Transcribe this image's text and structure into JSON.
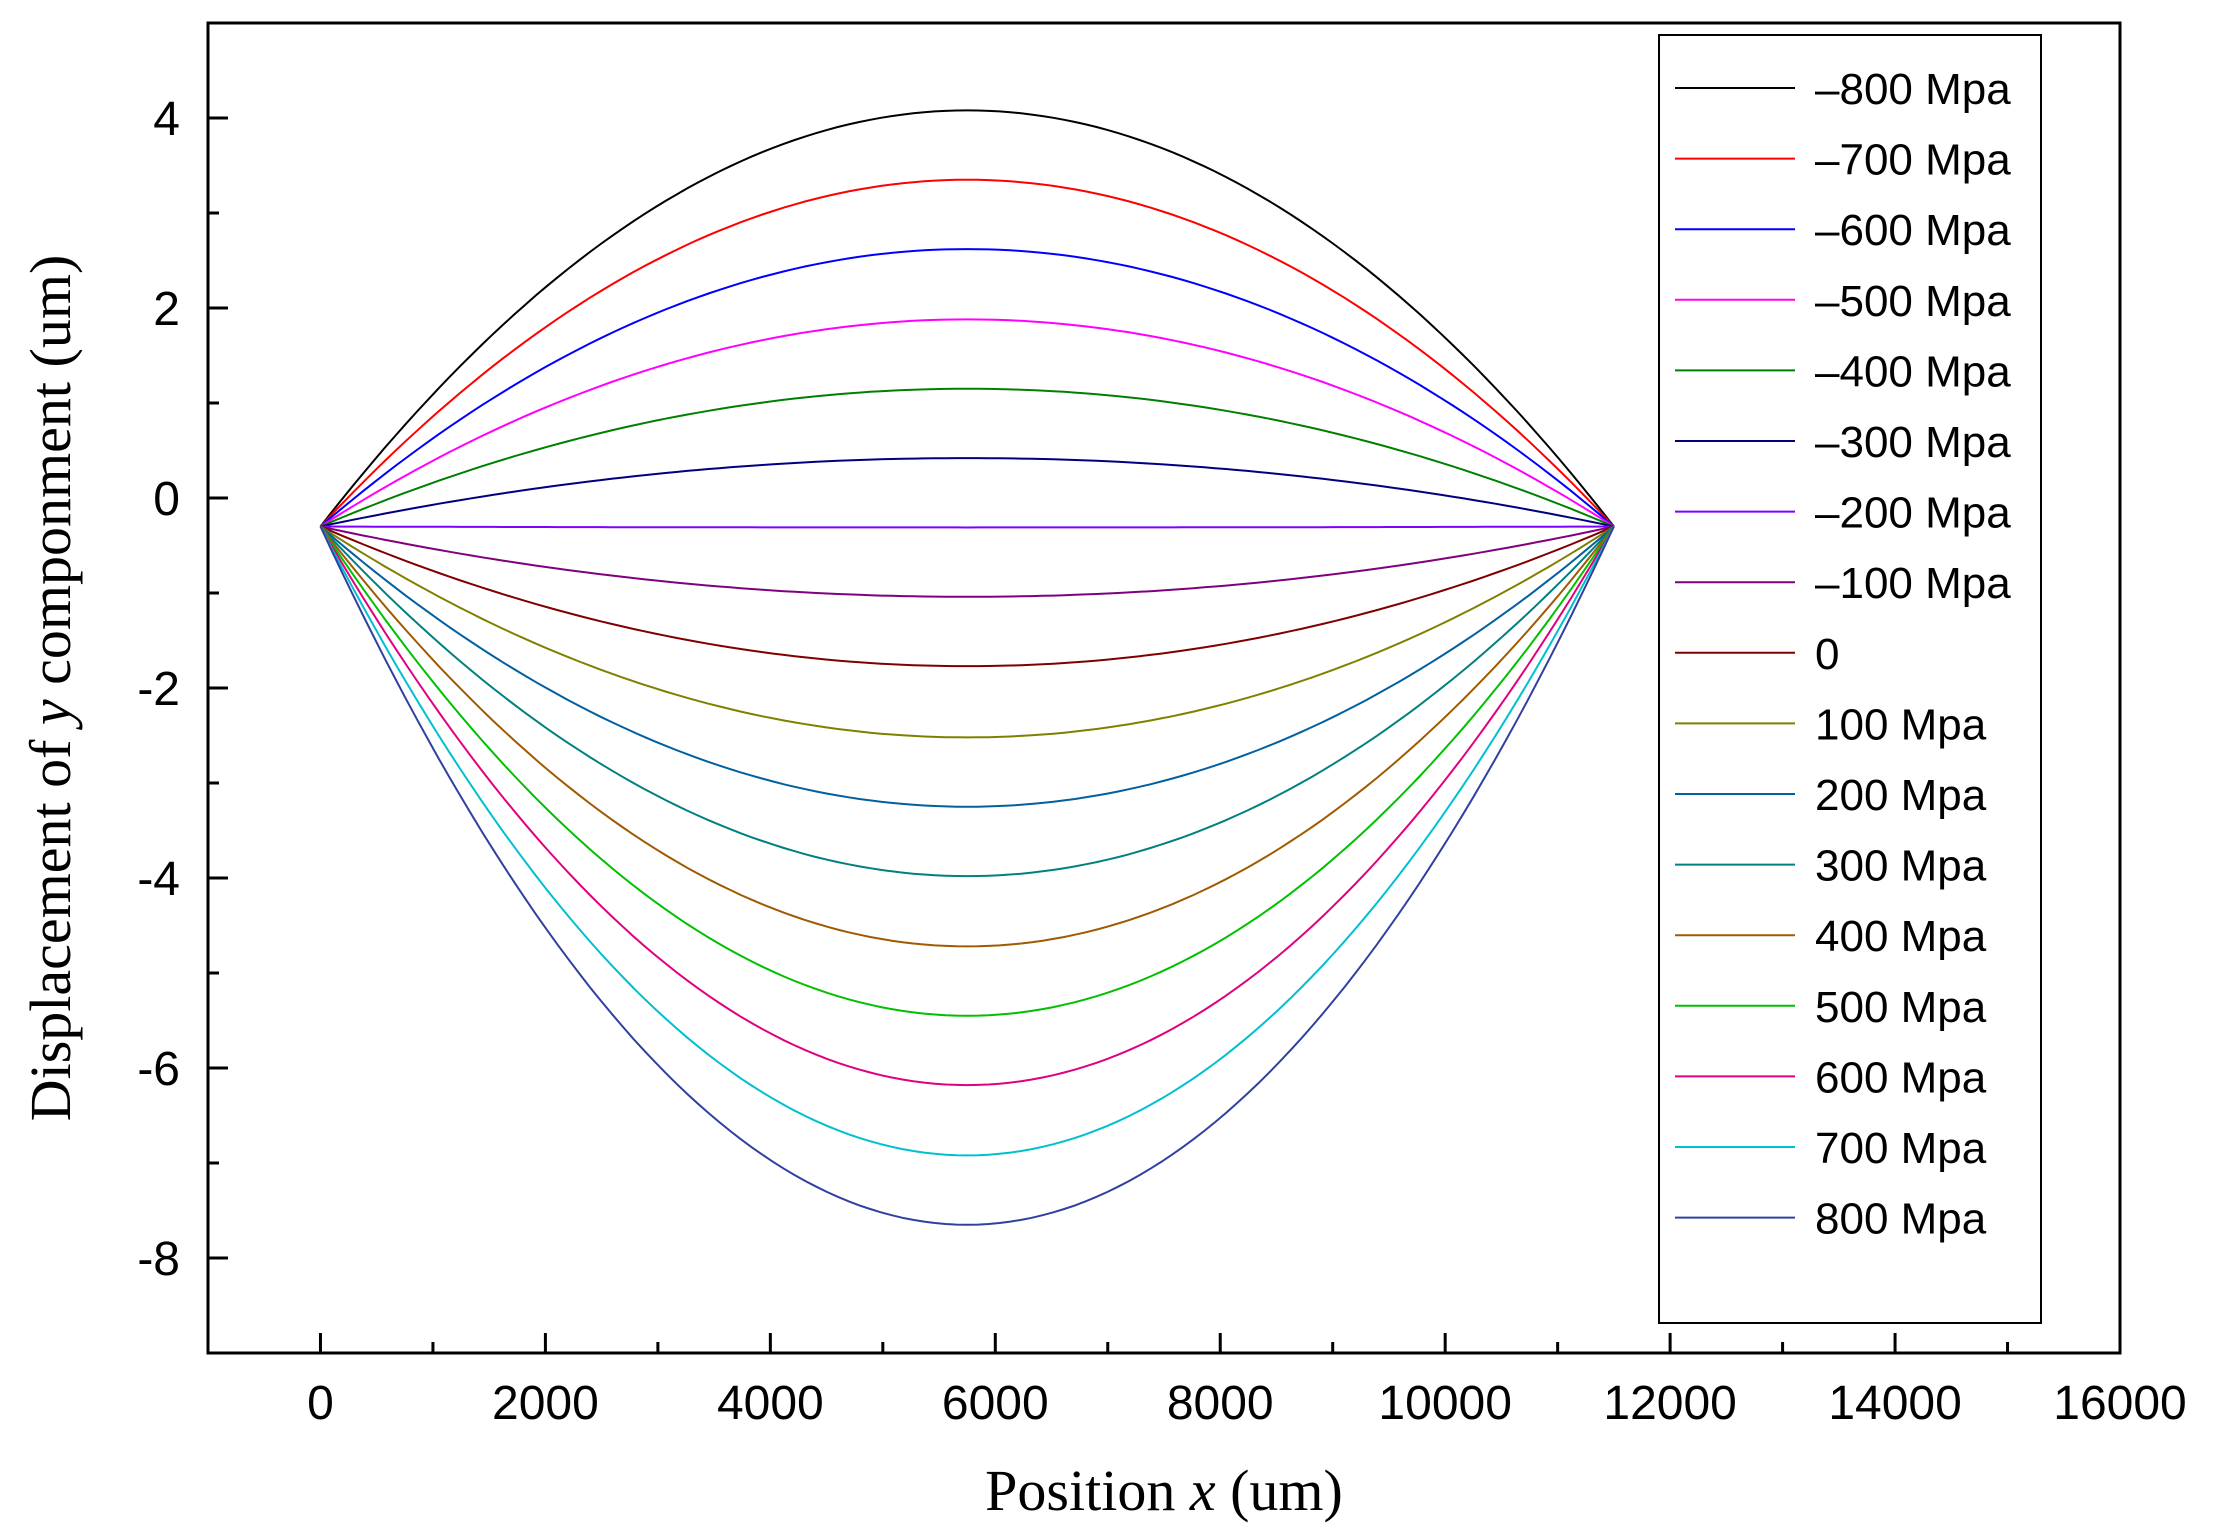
{
  "chart_data": {
    "type": "line",
    "xlabel_parts": [
      "Position ",
      "x",
      " (um)"
    ],
    "ylabel_parts": [
      "Displacement of ",
      "y",
      " componment (um)"
    ],
    "xlim": [
      -1000,
      16000
    ],
    "ylim": [
      -9,
      5
    ],
    "x_ticks": [
      0,
      2000,
      4000,
      6000,
      8000,
      10000,
      12000,
      14000,
      16000
    ],
    "x_tick_labels": [
      "0",
      "2000",
      "4000",
      "6000",
      "8000",
      "10000",
      "12000",
      "14000",
      "16000"
    ],
    "y_ticks": [
      4,
      2,
      0,
      -2,
      -4,
      -6,
      -8
    ],
    "y_tick_labels": [
      "4",
      "2",
      "0",
      "-2",
      "-4",
      "-6",
      "-8"
    ],
    "x_minor_step": 1000,
    "y_minor_step": 1,
    "grid": false,
    "legend_position": "top-right",
    "curve_shape": "parabola",
    "x_start": 0,
    "x_end": 11500,
    "x_peak": 5750,
    "endpoint_y": -0.3,
    "series": [
      {
        "name": "–800 Mpa",
        "color": "#000000",
        "peak": 4.08
      },
      {
        "name": "–700 Mpa",
        "color": "#ff0000",
        "peak": 3.35
      },
      {
        "name": "–600 Mpa",
        "color": "#0000ff",
        "peak": 2.62
      },
      {
        "name": "–500 Mpa",
        "color": "#ff00ff",
        "peak": 1.88
      },
      {
        "name": "–400 Mpa",
        "color": "#008000",
        "peak": 1.15
      },
      {
        "name": "–300 Mpa",
        "color": "#000080",
        "peak": 0.42
      },
      {
        "name": "–200 Mpa",
        "color": "#8000ff",
        "peak": -0.31
      },
      {
        "name": "–100 Mpa",
        "color": "#800080",
        "peak": -1.04
      },
      {
        "name": "0",
        "color": "#800000",
        "peak": -1.77
      },
      {
        "name": "100 Mpa",
        "color": "#808000",
        "peak": -2.52
      },
      {
        "name": "200 Mpa",
        "color": "#0060a0",
        "peak": -3.25
      },
      {
        "name": "300 Mpa",
        "color": "#008080",
        "peak": -3.98
      },
      {
        "name": "400 Mpa",
        "color": "#a05a00",
        "peak": -4.72
      },
      {
        "name": "500 Mpa",
        "color": "#00c000",
        "peak": -5.45
      },
      {
        "name": "600 Mpa",
        "color": "#e00080",
        "peak": -6.18
      },
      {
        "name": "700 Mpa",
        "color": "#00c0d0",
        "peak": -6.92
      },
      {
        "name": "800 Mpa",
        "color": "#3040a0",
        "peak": -7.65
      }
    ]
  }
}
